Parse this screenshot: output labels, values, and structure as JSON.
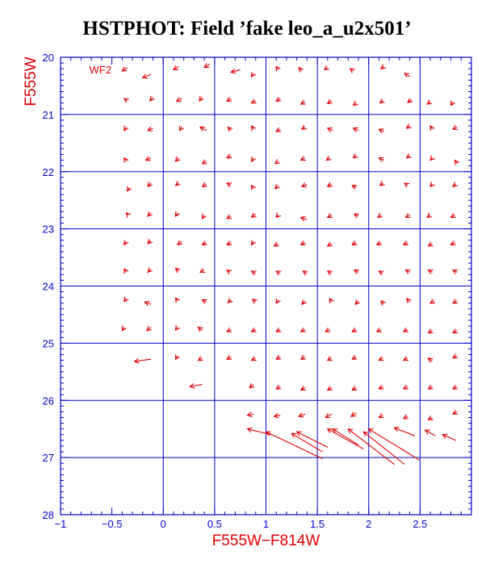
{
  "chart_data": {
    "type": "scatter",
    "title": "HSTPHOT: Field ’fake leo_a_u2x501’",
    "xlabel": "F555W−F814W",
    "ylabel": "F555W",
    "panel_label": "WF2",
    "xlim": [
      -1,
      3.0
    ],
    "ylim": [
      28,
      20
    ],
    "y_inverted": true,
    "grid": true,
    "x_major_ticks": [
      -1,
      -0.5,
      0,
      0.5,
      1,
      1.5,
      2,
      2.5
    ],
    "x_tick_labels": [
      "−1",
      "−0.5",
      "0",
      "0.5",
      "1",
      "1.5",
      "2",
      "2.5"
    ],
    "y_major_ticks": [
      20,
      21,
      22,
      23,
      24,
      25,
      26,
      27,
      28
    ],
    "y_tick_labels": [
      "20",
      "21",
      "22",
      "23",
      "24",
      "25",
      "26",
      "27",
      "28"
    ],
    "grid_x": [
      0,
      0.5,
      1,
      1.5,
      2,
      2.5
    ],
    "grid_y": [
      21,
      22,
      23,
      24,
      25,
      26,
      27
    ],
    "colors": {
      "axes": "#0000cc",
      "marks": "#e00000",
      "title": "#000000"
    },
    "series": [
      {
        "mark": "arrow",
        "columns": "x1, y1, x2, y2 (tail to head, data units)",
        "arrows": [
          [
            -0.35,
            20.18,
            -0.4,
            20.24
          ],
          [
            -0.12,
            20.3,
            -0.2,
            20.36
          ],
          [
            0.15,
            20.16,
            0.1,
            20.22
          ],
          [
            0.45,
            20.12,
            0.4,
            20.18
          ],
          [
            0.75,
            20.22,
            0.66,
            20.26
          ],
          [
            0.88,
            20.28,
            0.86,
            20.34
          ],
          [
            1.12,
            20.22,
            1.1,
            20.16
          ],
          [
            1.35,
            20.24,
            1.32,
            20.18
          ],
          [
            1.6,
            20.18,
            1.57,
            20.22
          ],
          [
            1.85,
            20.24,
            1.82,
            20.2
          ],
          [
            2.15,
            20.16,
            2.12,
            20.2
          ],
          [
            2.4,
            20.34,
            2.35,
            20.28
          ],
          [
            -0.35,
            20.76,
            -0.38,
            20.72
          ],
          [
            -0.1,
            20.7,
            -0.13,
            20.76
          ],
          [
            0.18,
            20.72,
            0.13,
            20.77
          ],
          [
            0.38,
            20.7,
            0.35,
            20.76
          ],
          [
            0.66,
            20.72,
            0.62,
            20.77
          ],
          [
            0.9,
            20.76,
            0.86,
            20.8
          ],
          [
            1.14,
            20.72,
            1.1,
            20.77
          ],
          [
            1.38,
            20.78,
            1.34,
            20.82
          ],
          [
            1.64,
            20.76,
            1.6,
            20.81
          ],
          [
            1.88,
            20.8,
            1.85,
            20.84
          ],
          [
            2.14,
            20.76,
            2.11,
            20.8
          ],
          [
            2.42,
            20.74,
            2.38,
            20.79
          ],
          [
            2.6,
            20.78,
            2.57,
            20.82
          ],
          [
            2.82,
            20.78,
            2.8,
            20.84
          ],
          [
            -0.36,
            21.22,
            -0.38,
            21.28
          ],
          [
            -0.1,
            21.24,
            -0.15,
            21.28
          ],
          [
            0.18,
            21.22,
            0.16,
            21.28
          ],
          [
            0.42,
            21.28,
            0.36,
            21.22
          ],
          [
            0.66,
            21.28,
            0.63,
            21.22
          ],
          [
            0.88,
            21.26,
            0.86,
            21.2
          ],
          [
            1.14,
            21.26,
            1.1,
            21.3
          ],
          [
            1.38,
            21.22,
            1.35,
            21.26
          ],
          [
            1.65,
            21.28,
            1.6,
            21.24
          ],
          [
            1.9,
            21.28,
            1.85,
            21.24
          ],
          [
            2.15,
            21.3,
            2.1,
            21.26
          ],
          [
            2.4,
            21.2,
            2.37,
            21.24
          ],
          [
            2.62,
            21.26,
            2.6,
            21.2
          ],
          [
            2.86,
            21.22,
            2.82,
            21.26
          ],
          [
            -0.36,
            21.82,
            -0.38,
            21.76
          ],
          [
            -0.12,
            21.76,
            -0.17,
            21.8
          ],
          [
            0.15,
            21.76,
            0.12,
            21.82
          ],
          [
            0.42,
            21.82,
            0.38,
            21.86
          ],
          [
            0.66,
            21.72,
            0.62,
            21.76
          ],
          [
            0.88,
            21.76,
            0.86,
            21.82
          ],
          [
            1.12,
            21.82,
            1.09,
            21.86
          ],
          [
            1.38,
            21.76,
            1.34,
            21.8
          ],
          [
            1.62,
            21.76,
            1.59,
            21.8
          ],
          [
            1.88,
            21.72,
            1.85,
            21.76
          ],
          [
            2.15,
            21.8,
            2.1,
            21.76
          ],
          [
            2.4,
            21.72,
            2.37,
            21.76
          ],
          [
            2.62,
            21.76,
            2.6,
            21.8
          ],
          [
            2.86,
            21.86,
            2.84,
            21.8
          ],
          [
            -0.33,
            22.28,
            -0.35,
            22.34
          ],
          [
            -0.12,
            22.2,
            -0.15,
            22.26
          ],
          [
            0.15,
            22.2,
            0.12,
            22.24
          ],
          [
            0.42,
            22.22,
            0.38,
            22.26
          ],
          [
            0.66,
            22.24,
            0.62,
            22.2
          ],
          [
            0.88,
            22.3,
            0.86,
            22.24
          ],
          [
            1.12,
            22.24,
            1.09,
            22.3
          ],
          [
            1.4,
            22.22,
            1.35,
            22.26
          ],
          [
            1.64,
            22.22,
            1.6,
            22.26
          ],
          [
            1.88,
            22.28,
            1.84,
            22.24
          ],
          [
            2.14,
            22.2,
            2.11,
            22.24
          ],
          [
            2.38,
            22.24,
            2.35,
            22.2
          ],
          [
            2.62,
            22.22,
            2.6,
            22.26
          ],
          [
            2.85,
            22.22,
            2.82,
            22.26
          ],
          [
            -0.34,
            22.76,
            -0.36,
            22.72
          ],
          [
            -0.12,
            22.72,
            -0.15,
            22.78
          ],
          [
            0.14,
            22.72,
            0.12,
            22.78
          ],
          [
            0.4,
            22.76,
            0.38,
            22.82
          ],
          [
            0.66,
            22.78,
            0.62,
            22.82
          ],
          [
            0.9,
            22.74,
            0.86,
            22.8
          ],
          [
            1.12,
            22.76,
            1.1,
            22.8
          ],
          [
            1.4,
            22.84,
            1.34,
            22.8
          ],
          [
            1.64,
            22.76,
            1.6,
            22.8
          ],
          [
            1.9,
            22.78,
            1.86,
            22.74
          ],
          [
            2.12,
            22.76,
            2.09,
            22.8
          ],
          [
            2.4,
            22.76,
            2.36,
            22.8
          ],
          [
            2.6,
            22.76,
            2.57,
            22.8
          ],
          [
            2.84,
            22.76,
            2.8,
            22.8
          ],
          [
            -0.36,
            23.22,
            -0.38,
            23.28
          ],
          [
            -0.12,
            23.2,
            -0.15,
            23.26
          ],
          [
            0.18,
            23.22,
            0.14,
            23.28
          ],
          [
            0.42,
            23.24,
            0.38,
            23.28
          ],
          [
            0.66,
            23.24,
            0.62,
            23.28
          ],
          [
            0.88,
            23.22,
            0.86,
            23.28
          ],
          [
            1.12,
            23.26,
            1.08,
            23.3
          ],
          [
            1.38,
            23.24,
            1.34,
            23.28
          ],
          [
            1.64,
            23.26,
            1.6,
            23.3
          ],
          [
            1.88,
            23.24,
            1.84,
            23.28
          ],
          [
            2.12,
            23.24,
            2.08,
            23.28
          ],
          [
            2.38,
            23.24,
            2.34,
            23.28
          ],
          [
            2.62,
            23.26,
            2.58,
            23.3
          ],
          [
            2.84,
            23.24,
            2.8,
            23.28
          ],
          [
            -0.36,
            23.76,
            -0.38,
            23.7
          ],
          [
            -0.12,
            23.7,
            -0.15,
            23.76
          ],
          [
            0.15,
            23.74,
            0.12,
            23.69
          ],
          [
            0.4,
            23.72,
            0.36,
            23.76
          ],
          [
            0.65,
            23.76,
            0.62,
            23.72
          ],
          [
            0.9,
            23.78,
            0.86,
            23.74
          ],
          [
            1.14,
            23.78,
            1.1,
            23.74
          ],
          [
            1.4,
            23.78,
            1.36,
            23.74
          ],
          [
            1.64,
            23.78,
            1.6,
            23.74
          ],
          [
            1.9,
            23.76,
            1.86,
            23.72
          ],
          [
            2.14,
            23.78,
            2.1,
            23.74
          ],
          [
            2.4,
            23.76,
            2.36,
            23.72
          ],
          [
            2.62,
            23.76,
            2.58,
            23.72
          ],
          [
            2.86,
            23.76,
            2.82,
            23.72
          ],
          [
            -0.36,
            24.22,
            -0.38,
            24.27
          ],
          [
            -0.12,
            24.32,
            -0.18,
            24.28
          ],
          [
            0.14,
            24.26,
            0.12,
            24.21
          ],
          [
            0.42,
            24.28,
            0.38,
            24.24
          ],
          [
            0.66,
            24.24,
            0.63,
            24.29
          ],
          [
            0.9,
            24.28,
            0.87,
            24.23
          ],
          [
            1.12,
            24.24,
            1.1,
            24.3
          ],
          [
            1.38,
            24.26,
            1.35,
            24.32
          ],
          [
            1.64,
            24.28,
            1.62,
            24.22
          ],
          [
            1.9,
            24.26,
            1.87,
            24.32
          ],
          [
            2.15,
            24.32,
            2.12,
            24.26
          ],
          [
            2.4,
            24.28,
            2.37,
            24.22
          ],
          [
            2.64,
            24.26,
            2.6,
            24.3
          ],
          [
            2.86,
            24.26,
            2.82,
            24.3
          ],
          [
            -0.38,
            24.72,
            -0.4,
            24.78
          ],
          [
            -0.12,
            24.72,
            -0.16,
            24.78
          ],
          [
            0.14,
            24.72,
            0.12,
            24.77
          ],
          [
            0.38,
            24.78,
            0.34,
            24.72
          ],
          [
            0.66,
            24.76,
            0.62,
            24.8
          ],
          [
            0.9,
            24.76,
            0.86,
            24.8
          ],
          [
            1.14,
            24.76,
            1.1,
            24.8
          ],
          [
            1.38,
            24.76,
            1.34,
            24.8
          ],
          [
            1.62,
            24.76,
            1.58,
            24.8
          ],
          [
            1.88,
            24.76,
            1.84,
            24.8
          ],
          [
            2.12,
            24.76,
            2.08,
            24.8
          ],
          [
            2.38,
            24.76,
            2.34,
            24.8
          ],
          [
            2.62,
            24.78,
            2.58,
            24.82
          ],
          [
            2.86,
            24.78,
            2.82,
            24.82
          ],
          [
            -0.12,
            25.28,
            -0.28,
            25.32
          ],
          [
            0.14,
            25.22,
            0.12,
            25.28
          ],
          [
            0.38,
            25.26,
            0.34,
            25.3
          ],
          [
            0.66,
            25.24,
            0.62,
            25.28
          ],
          [
            0.9,
            25.26,
            0.86,
            25.3
          ],
          [
            1.14,
            25.24,
            1.1,
            25.28
          ],
          [
            1.38,
            25.24,
            1.34,
            25.28
          ],
          [
            1.64,
            25.26,
            1.6,
            25.3
          ],
          [
            1.88,
            25.24,
            1.84,
            25.28
          ],
          [
            2.14,
            25.26,
            2.1,
            25.3
          ],
          [
            2.38,
            25.26,
            2.34,
            25.3
          ],
          [
            2.62,
            25.32,
            2.58,
            25.26
          ],
          [
            2.86,
            25.22,
            2.82,
            25.26
          ],
          [
            0.38,
            25.72,
            0.26,
            25.76
          ],
          [
            0.88,
            25.72,
            0.84,
            25.78
          ],
          [
            1.14,
            25.76,
            1.1,
            25.8
          ],
          [
            1.38,
            25.78,
            1.34,
            25.82
          ],
          [
            1.64,
            25.78,
            1.6,
            25.82
          ],
          [
            1.88,
            25.78,
            1.84,
            25.82
          ],
          [
            2.14,
            25.76,
            2.1,
            25.8
          ],
          [
            2.38,
            25.76,
            2.34,
            25.8
          ],
          [
            2.62,
            25.76,
            2.58,
            25.8
          ],
          [
            2.86,
            25.76,
            2.82,
            25.8
          ],
          [
            0.88,
            26.24,
            0.82,
            26.26
          ],
          [
            1.14,
            26.26,
            1.08,
            26.28
          ],
          [
            1.38,
            26.24,
            1.32,
            26.28
          ],
          [
            1.64,
            26.24,
            1.58,
            26.3
          ],
          [
            1.88,
            26.22,
            1.83,
            26.28
          ],
          [
            2.14,
            26.26,
            2.1,
            26.3
          ],
          [
            2.38,
            26.28,
            2.34,
            26.32
          ],
          [
            2.62,
            26.3,
            2.58,
            26.34
          ],
          [
            2.86,
            26.2,
            2.82,
            26.24
          ],
          [
            1.05,
            26.6,
            0.82,
            26.5
          ],
          [
            1.55,
            27.02,
            1.0,
            26.55
          ],
          [
            1.55,
            26.9,
            1.25,
            26.58
          ],
          [
            1.6,
            26.82,
            1.3,
            26.55
          ],
          [
            1.95,
            26.85,
            1.6,
            26.5
          ],
          [
            1.9,
            26.78,
            1.65,
            26.5
          ],
          [
            2.25,
            27.12,
            1.8,
            26.5
          ],
          [
            2.35,
            27.12,
            1.95,
            26.55
          ],
          [
            2.5,
            27.05,
            2.0,
            26.5
          ],
          [
            2.45,
            26.62,
            2.25,
            26.48
          ],
          [
            2.65,
            26.62,
            2.55,
            26.52
          ],
          [
            2.85,
            26.7,
            2.72,
            26.6
          ]
        ]
      }
    ]
  }
}
